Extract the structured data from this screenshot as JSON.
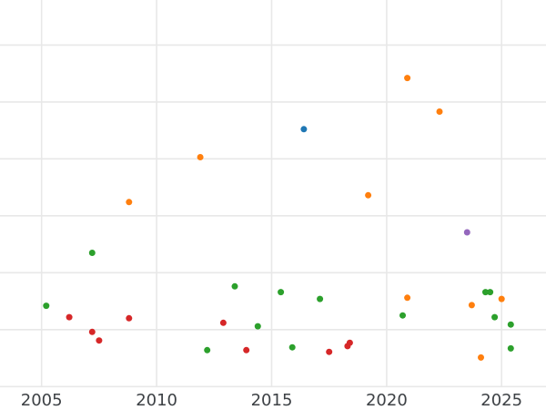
{
  "chart_data": {
    "type": "scatter",
    "title": "",
    "xlabel": "",
    "ylabel": "",
    "grid": true,
    "legend": "none",
    "background_color": "#ffffff",
    "grid_color": "#e8e8e8",
    "tick_label_color": "#3d4145",
    "palette": {
      "blue": "#1f77b4",
      "orange": "#ff7f0e",
      "green": "#2ca02c",
      "red": "#d62728",
      "purple": "#9467bd"
    },
    "x_axis": {
      "ticks": [
        2005,
        2010,
        2015,
        2020,
        2025
      ],
      "tick_labels": [
        "2005",
        "2010",
        "2015",
        "2020",
        "2025"
      ],
      "xlim": [
        2003.19,
        2026.93
      ]
    },
    "y_axis": {
      "labels_visible": false,
      "gridline_units": [
        0,
        1,
        2,
        3,
        4,
        5,
        6
      ],
      "ylim": [
        0,
        6.79
      ]
    },
    "points": [
      {
        "x": 2005.2,
        "y": 1.42,
        "c": "green"
      },
      {
        "x": 2006.2,
        "y": 1.22,
        "c": "red"
      },
      {
        "x": 2007.2,
        "y": 2.35,
        "c": "green"
      },
      {
        "x": 2007.2,
        "y": 0.96,
        "c": "red"
      },
      {
        "x": 2007.5,
        "y": 0.81,
        "c": "red"
      },
      {
        "x": 2008.8,
        "y": 3.24,
        "c": "orange"
      },
      {
        "x": 2008.8,
        "y": 1.2,
        "c": "red"
      },
      {
        "x": 2011.9,
        "y": 4.03,
        "c": "orange"
      },
      {
        "x": 2012.2,
        "y": 0.64,
        "c": "green"
      },
      {
        "x": 2012.9,
        "y": 1.12,
        "c": "red"
      },
      {
        "x": 2013.4,
        "y": 1.76,
        "c": "green"
      },
      {
        "x": 2013.9,
        "y": 0.64,
        "c": "red"
      },
      {
        "x": 2014.4,
        "y": 1.06,
        "c": "green"
      },
      {
        "x": 2015.4,
        "y": 1.66,
        "c": "green"
      },
      {
        "x": 2015.9,
        "y": 0.69,
        "c": "green"
      },
      {
        "x": 2016.4,
        "y": 4.52,
        "c": "blue"
      },
      {
        "x": 2017.1,
        "y": 1.54,
        "c": "green"
      },
      {
        "x": 2017.5,
        "y": 0.61,
        "c": "red"
      },
      {
        "x": 2018.3,
        "y": 0.71,
        "c": "red"
      },
      {
        "x": 2018.4,
        "y": 0.77,
        "c": "red"
      },
      {
        "x": 2019.2,
        "y": 3.36,
        "c": "orange"
      },
      {
        "x": 2020.7,
        "y": 1.25,
        "c": "green"
      },
      {
        "x": 2020.9,
        "y": 5.42,
        "c": "orange"
      },
      {
        "x": 2020.9,
        "y": 1.56,
        "c": "orange"
      },
      {
        "x": 2022.3,
        "y": 4.83,
        "c": "orange"
      },
      {
        "x": 2023.5,
        "y": 2.71,
        "c": "purple"
      },
      {
        "x": 2023.7,
        "y": 1.43,
        "c": "orange"
      },
      {
        "x": 2024.1,
        "y": 0.51,
        "c": "orange"
      },
      {
        "x": 2024.3,
        "y": 1.66,
        "c": "green"
      },
      {
        "x": 2024.5,
        "y": 1.66,
        "c": "green"
      },
      {
        "x": 2024.7,
        "y": 1.22,
        "c": "green"
      },
      {
        "x": 2025.0,
        "y": 1.54,
        "c": "orange"
      },
      {
        "x": 2025.4,
        "y": 1.09,
        "c": "green"
      },
      {
        "x": 2025.4,
        "y": 0.67,
        "c": "green"
      }
    ],
    "point_radius_px": 3.5
  }
}
